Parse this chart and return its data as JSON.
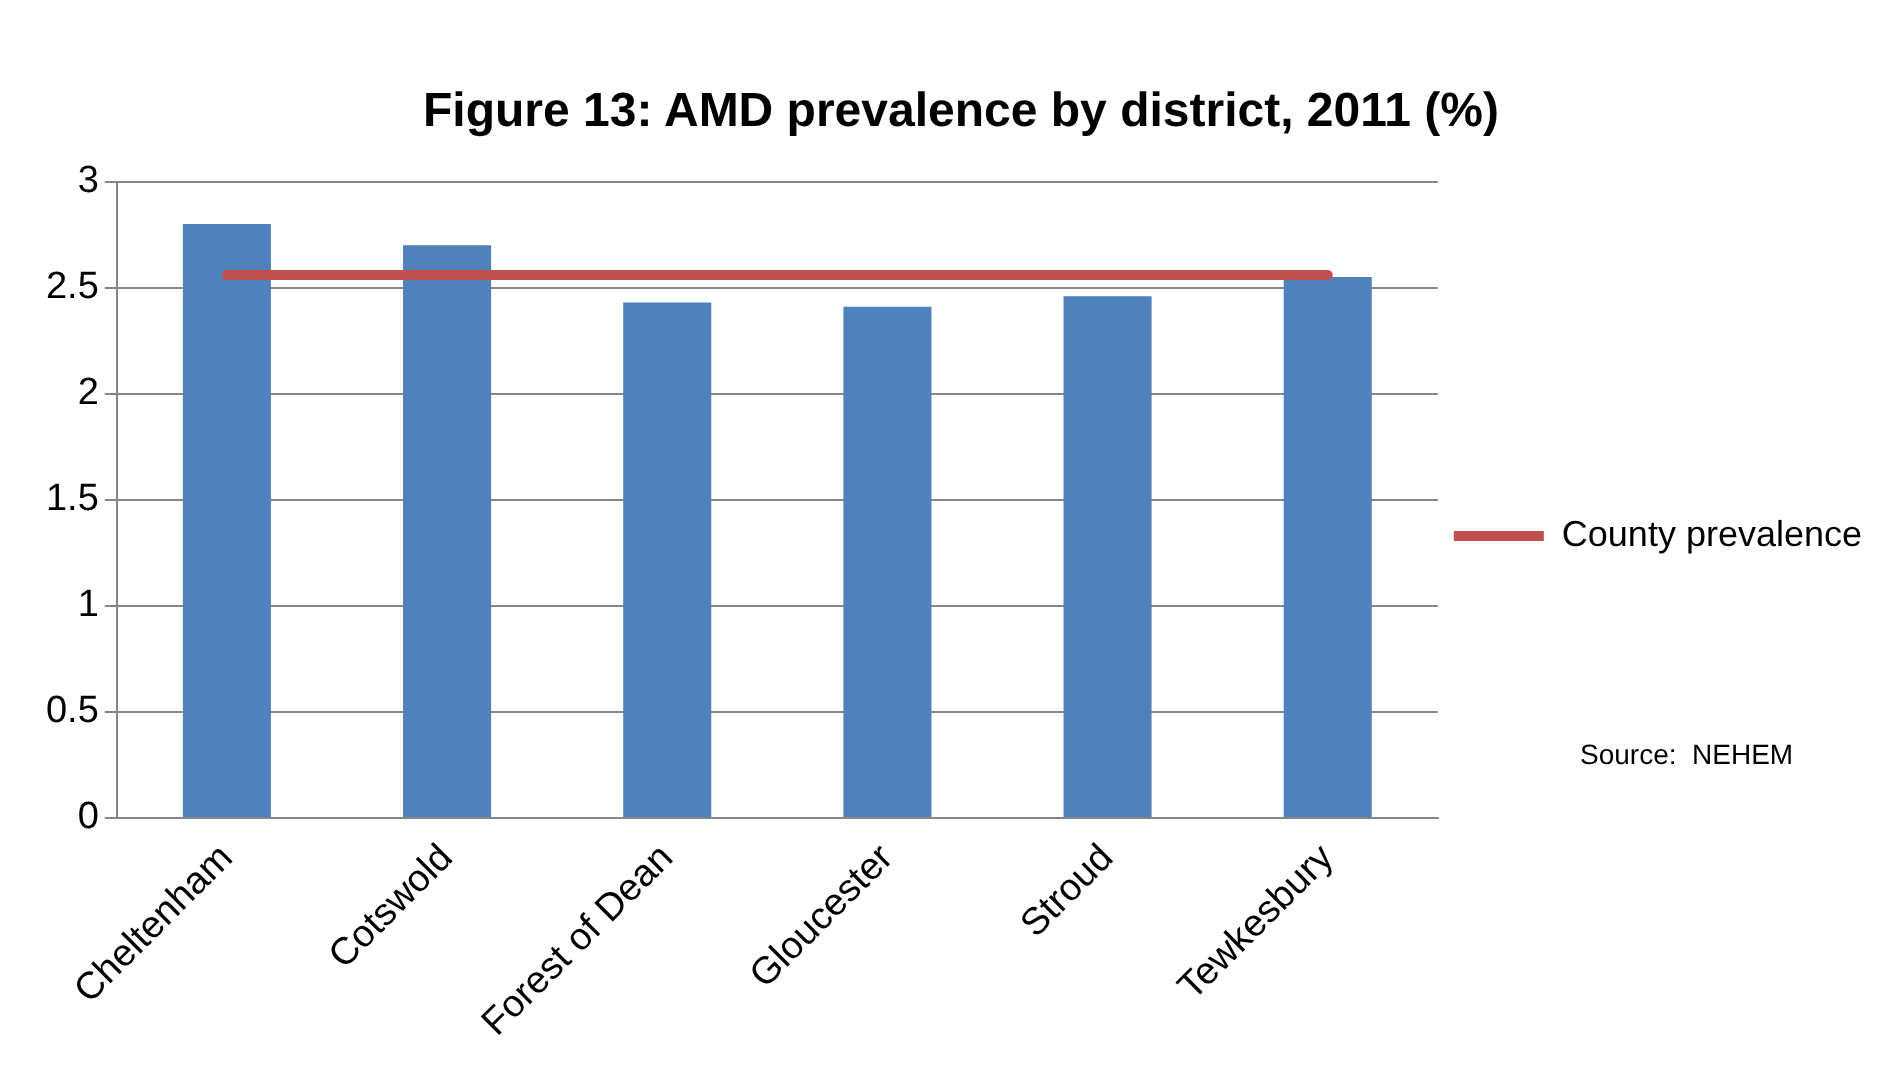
{
  "chart_data": {
    "type": "bar",
    "title": "Figure 13: AMD prevalence by district, 2011 (%)",
    "categories": [
      "Cheltenham",
      "Cotswold",
      "Forest of Dean",
      "Gloucester",
      "Stroud",
      "Tewkesbury"
    ],
    "series": [
      {
        "color": "#4f81bd",
        "values": [
          2.8,
          2.7,
          2.43,
          2.41,
          2.46,
          2.55
        ]
      },
      {
        "name": "County prevalence",
        "type": "line",
        "color": "#c0504d",
        "values": [
          2.56,
          2.56,
          2.56,
          2.56,
          2.56,
          2.56
        ]
      }
    ],
    "ylim": [
      0,
      3
    ],
    "yticks": [
      0,
      0.5,
      1,
      1.5,
      2,
      2.5,
      3
    ],
    "grid": "y",
    "legend": "right",
    "marker": "none",
    "annotations": [
      "Source:  NEHEM"
    ]
  }
}
